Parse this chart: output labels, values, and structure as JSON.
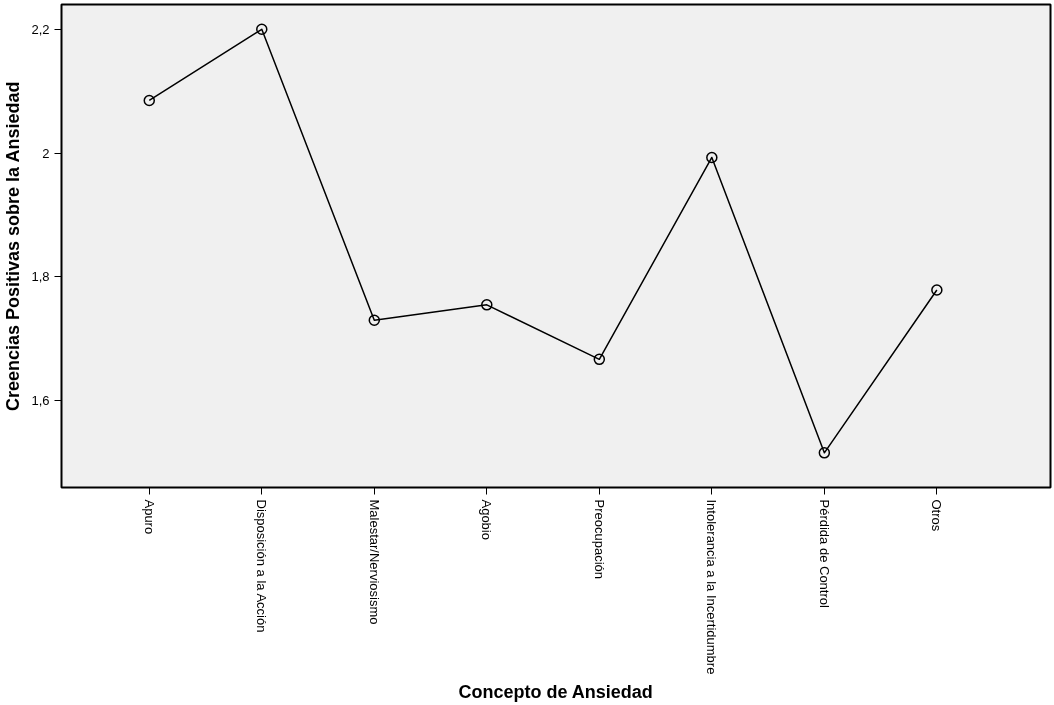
{
  "chart_data": {
    "type": "line",
    "xlabel": "Concepto de Ansiedad",
    "ylabel": "Creencias Positivas sobre la Ansiedad",
    "categories": [
      "Apuro",
      "Disposición a la Acción",
      "Malestar/Nerviosismo",
      "Agobio",
      "Preocupación",
      "Intolerancia a la Incertidumbre",
      "Pérdida de Control",
      "Otros"
    ],
    "series": [
      {
        "color": "#000000",
        "values": [
          2.085,
          2.2,
          1.73,
          1.755,
          1.667,
          1.993,
          1.516,
          1.779
        ]
      }
    ],
    "ylim": [
      1.46,
      2.24
    ],
    "yticks": [
      {
        "value": 1.6,
        "label": "1,6"
      },
      {
        "value": 1.8,
        "label": "1,8"
      },
      2,
      {
        "value": 2.2,
        "label": "2,2"
      }
    ],
    "marker": "circle",
    "line_style": "solid",
    "grid": false
  }
}
